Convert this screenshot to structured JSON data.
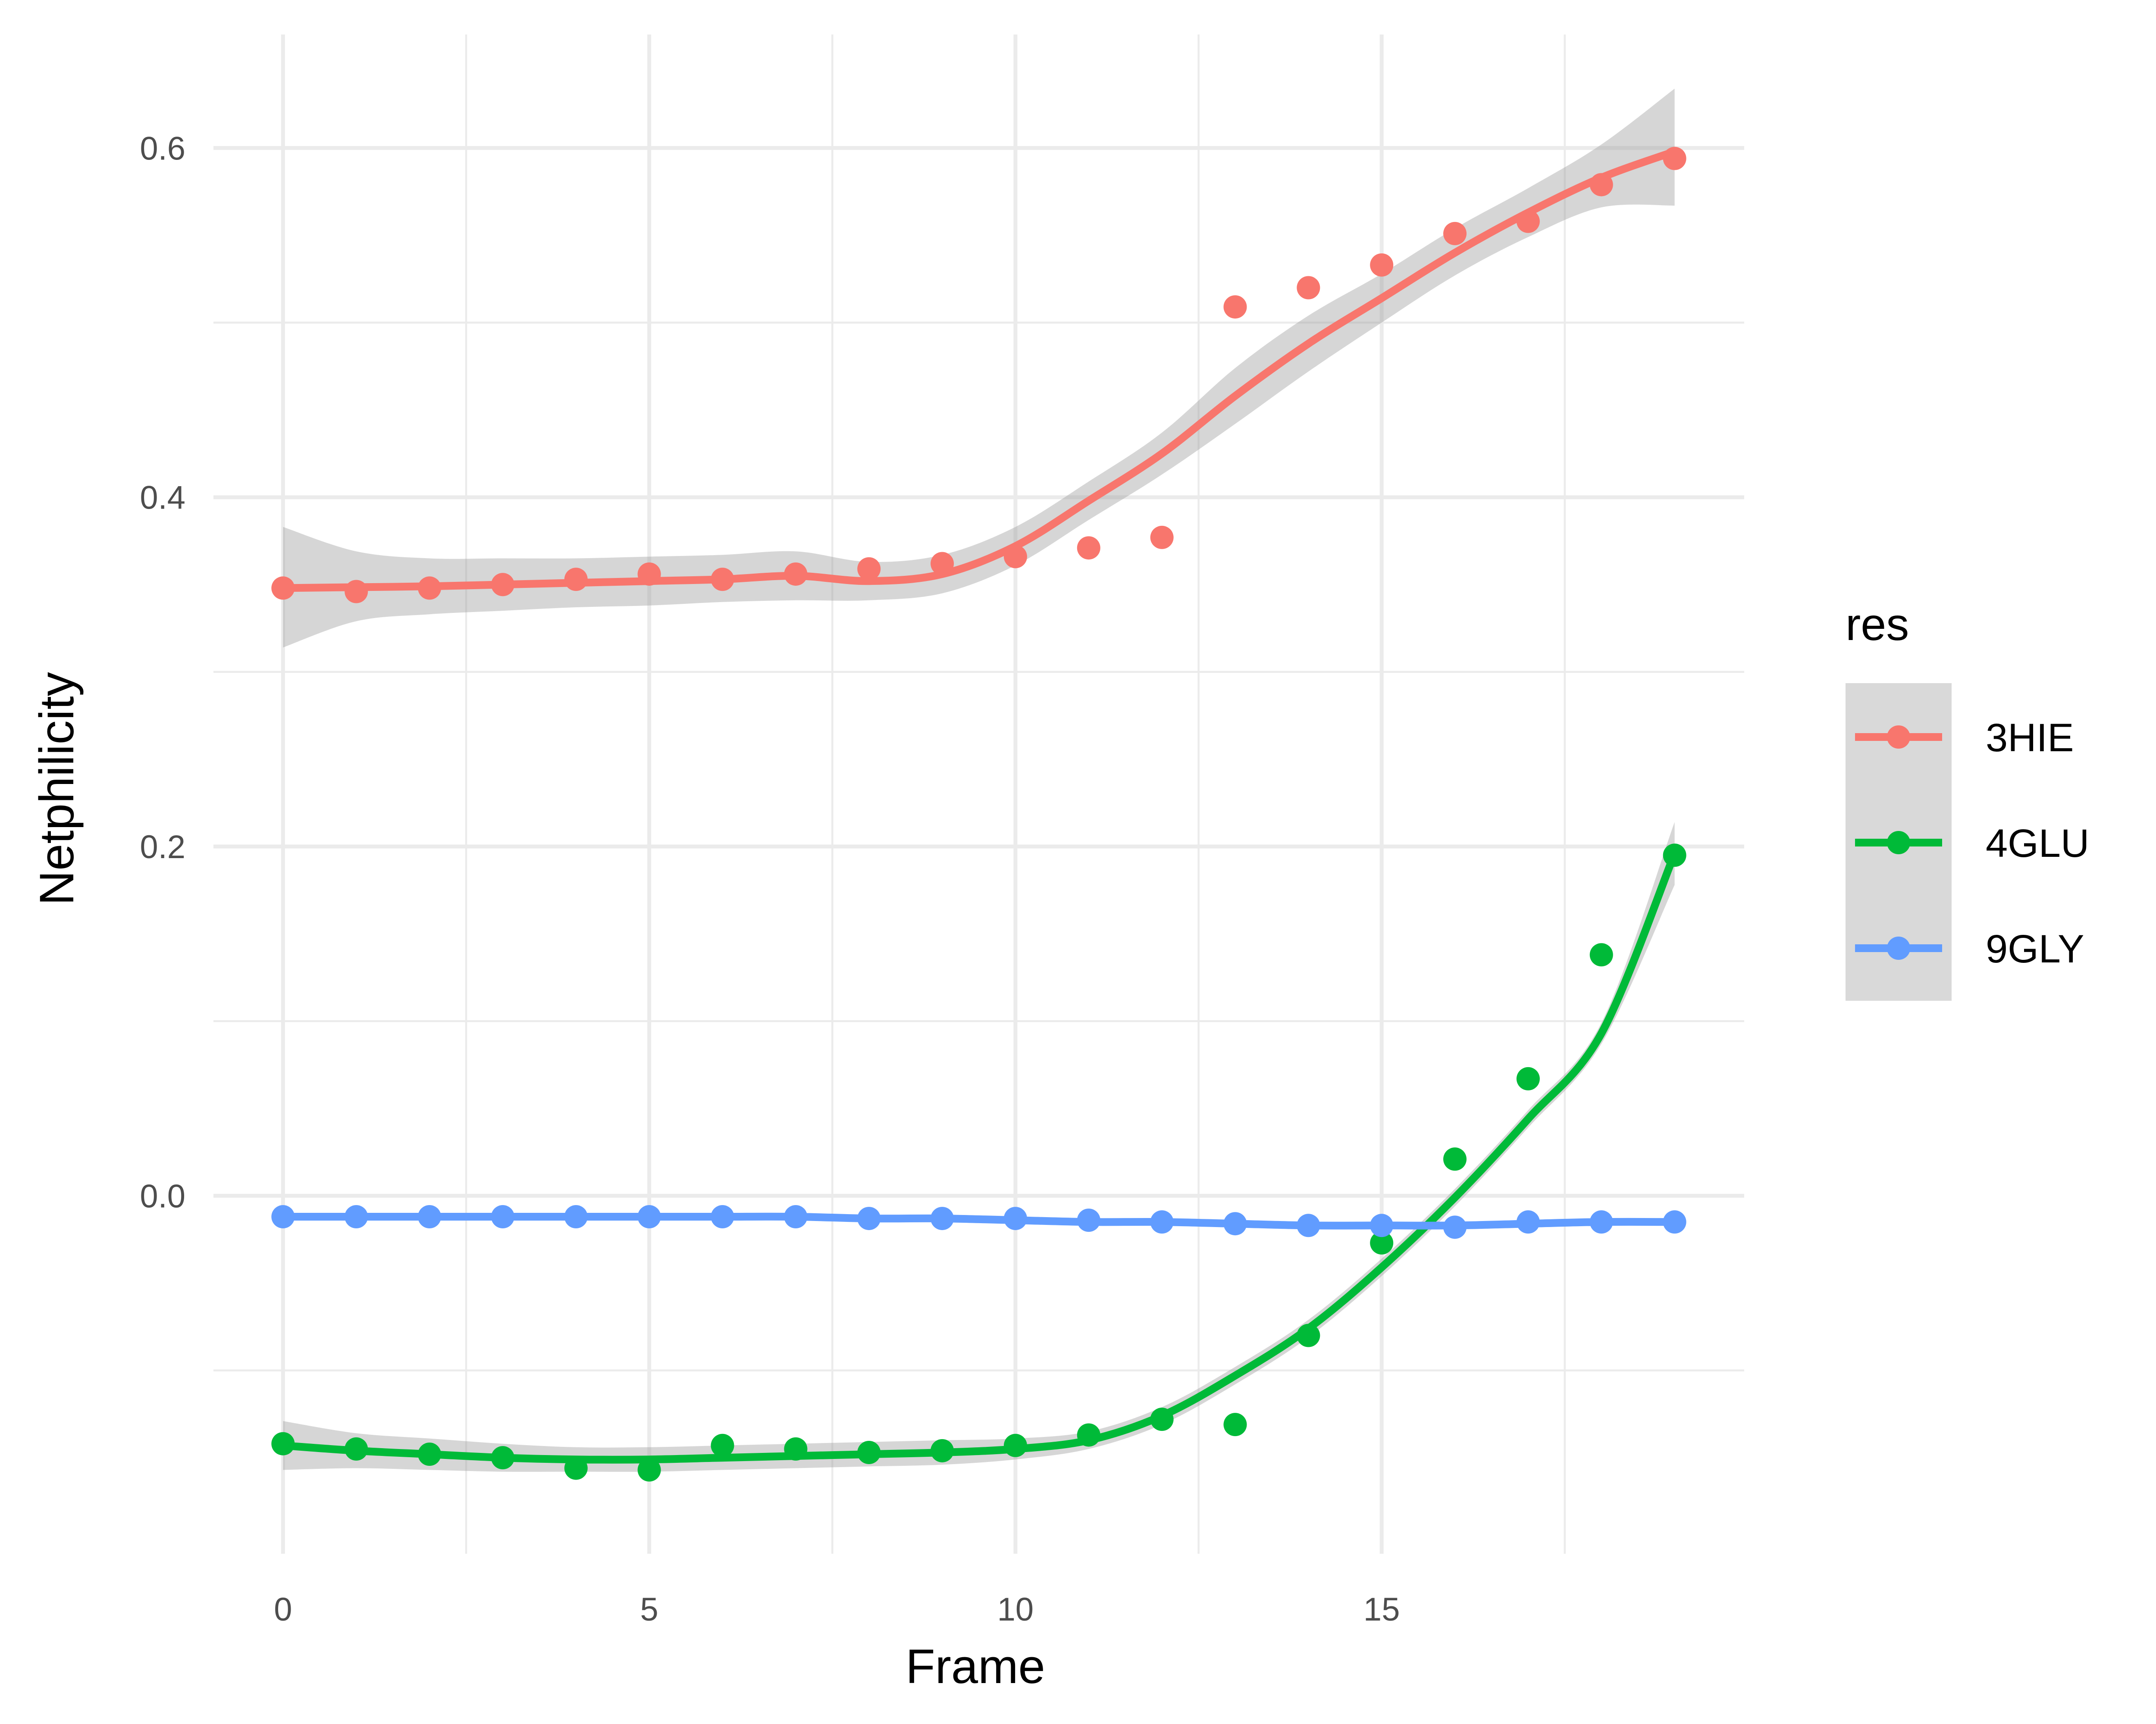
{
  "chart_data": {
    "type": "line",
    "xlabel": "Frame",
    "ylabel": "Netphilicity",
    "xlim": [
      -0.95,
      19.95
    ],
    "ylim": [
      -0.205,
      0.665
    ],
    "x_ticks": [
      0,
      5,
      10,
      15
    ],
    "x_tick_labels": [
      "0",
      "5",
      "10",
      "15"
    ],
    "x_minor": [
      2.5,
      7.5,
      12.5,
      17.5
    ],
    "y_ticks": [
      0.0,
      0.2,
      0.4,
      0.6
    ],
    "y_tick_labels": [
      "0.0",
      "0.2",
      "0.4",
      "0.6"
    ],
    "y_minor": [
      -0.1,
      0.1,
      0.3,
      0.5
    ],
    "grid": true,
    "legend": {
      "title": "res",
      "position": "right"
    },
    "x": [
      0,
      1,
      2,
      3,
      4,
      5,
      6,
      7,
      8,
      9,
      10,
      11,
      12,
      13,
      14,
      15,
      16,
      17,
      18,
      19
    ],
    "series": [
      {
        "name": "3HIE",
        "color": "#F8766D",
        "points": [
          0.348,
          0.346,
          0.348,
          0.35,
          0.353,
          0.356,
          0.353,
          0.356,
          0.359,
          0.362,
          0.366,
          0.371,
          0.377,
          0.509,
          0.52,
          0.533,
          0.551,
          0.558,
          0.579,
          0.594
        ],
        "smooth": [
          0.348,
          0.3485,
          0.349,
          0.35,
          0.351,
          0.352,
          0.353,
          0.355,
          0.352,
          0.356,
          0.372,
          0.398,
          0.425,
          0.458,
          0.488,
          0.514,
          0.54,
          0.563,
          0.583,
          0.598
        ],
        "band_lower": [
          0.314,
          0.329,
          0.333,
          0.335,
          0.337,
          0.338,
          0.34,
          0.341,
          0.341,
          0.345,
          0.361,
          0.387,
          0.413,
          0.442,
          0.472,
          0.5,
          0.527,
          0.549,
          0.566,
          0.567
        ],
        "band_upper": [
          0.383,
          0.369,
          0.365,
          0.365,
          0.365,
          0.366,
          0.367,
          0.369,
          0.363,
          0.367,
          0.383,
          0.409,
          0.437,
          0.474,
          0.504,
          0.528,
          0.554,
          0.577,
          0.602,
          0.634
        ]
      },
      {
        "name": "4GLU",
        "color": "#00BA38",
        "points": [
          -0.142,
          -0.145,
          -0.148,
          -0.15,
          -0.156,
          -0.157,
          -0.143,
          -0.145,
          -0.147,
          -0.146,
          -0.143,
          -0.137,
          -0.128,
          -0.131,
          -0.08,
          -0.027,
          0.021,
          0.067,
          0.138,
          0.195
        ],
        "smooth": [
          -0.143,
          -0.146,
          -0.148,
          -0.15,
          -0.151,
          -0.151,
          -0.15,
          -0.149,
          -0.148,
          -0.147,
          -0.145,
          -0.14,
          -0.126,
          -0.103,
          -0.076,
          -0.041,
          -0.001,
          0.044,
          0.093,
          0.196
        ],
        "band_lower": [
          -0.157,
          -0.156,
          -0.157,
          -0.158,
          -0.158,
          -0.158,
          -0.157,
          -0.156,
          -0.155,
          -0.154,
          -0.151,
          -0.145,
          -0.131,
          -0.108,
          -0.081,
          -0.046,
          -0.006,
          0.039,
          0.087,
          0.178
        ],
        "band_upper": [
          -0.129,
          -0.136,
          -0.139,
          -0.142,
          -0.144,
          -0.144,
          -0.143,
          -0.142,
          -0.141,
          -0.14,
          -0.139,
          -0.135,
          -0.121,
          -0.098,
          -0.071,
          -0.036,
          0.004,
          0.049,
          0.099,
          0.214
        ]
      },
      {
        "name": "9GLY",
        "color": "#619CFF",
        "points": [
          -0.012,
          -0.012,
          -0.012,
          -0.012,
          -0.012,
          -0.012,
          -0.012,
          -0.012,
          -0.013,
          -0.013,
          -0.013,
          -0.014,
          -0.015,
          -0.016,
          -0.017,
          -0.017,
          -0.018,
          -0.015,
          -0.015,
          -0.015
        ],
        "smooth": [
          -0.012,
          -0.012,
          -0.012,
          -0.012,
          -0.012,
          -0.012,
          -0.012,
          -0.012,
          -0.013,
          -0.013,
          -0.014,
          -0.015,
          -0.015,
          -0.016,
          -0.017,
          -0.017,
          -0.017,
          -0.016,
          -0.015,
          -0.015
        ],
        "band_lower": [
          -0.013,
          -0.013,
          -0.013,
          -0.013,
          -0.013,
          -0.013,
          -0.013,
          -0.013,
          -0.014,
          -0.014,
          -0.015,
          -0.016,
          -0.016,
          -0.017,
          -0.018,
          -0.018,
          -0.018,
          -0.017,
          -0.016,
          -0.016
        ],
        "band_upper": [
          -0.011,
          -0.011,
          -0.011,
          -0.011,
          -0.011,
          -0.011,
          -0.011,
          -0.011,
          -0.012,
          -0.012,
          -0.013,
          -0.014,
          -0.014,
          -0.015,
          -0.016,
          -0.016,
          -0.016,
          -0.015,
          -0.014,
          -0.014
        ]
      }
    ]
  }
}
